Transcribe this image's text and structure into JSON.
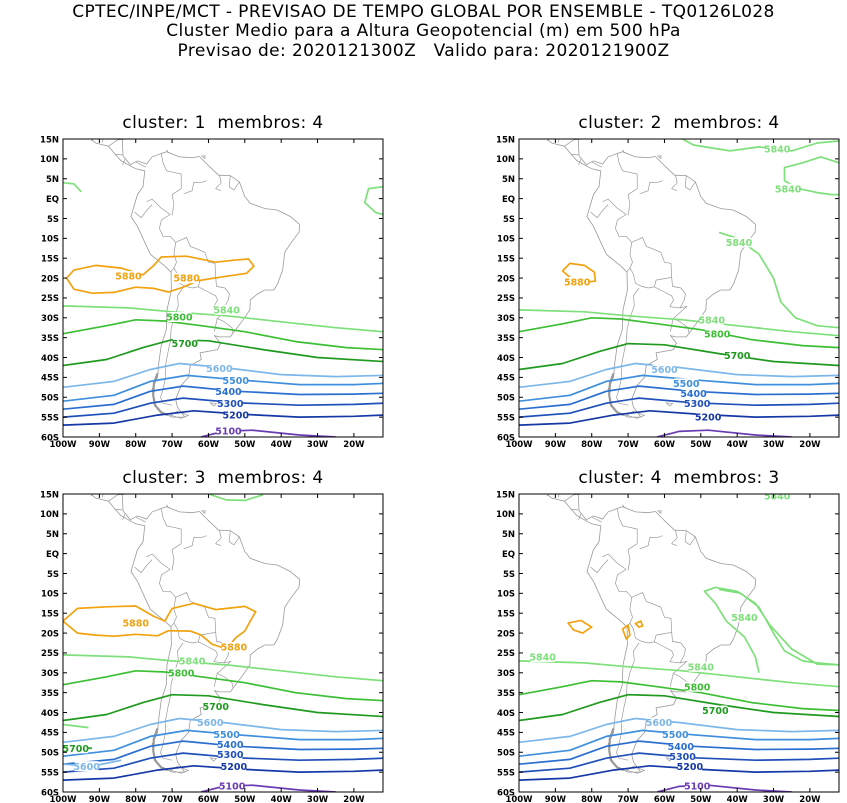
{
  "header": {
    "line1": "CPTEC/INPE/MCT - PREVISAO DE TEMPO GLOBAL POR ENSEMBLE - TQ0126L028",
    "line2": "Cluster Medio para a Altura Geopotencial (m) em 500 hPa",
    "line3": "Previsao de: 2020121300Z   Valido para: 2020121900Z"
  },
  "map_axes": {
    "lat_ticks": [
      "15N",
      "10N",
      "5N",
      "EQ",
      "5S",
      "10S",
      "15S",
      "20S",
      "25S",
      "30S",
      "35S",
      "40S",
      "45S",
      "50S",
      "55S",
      "60S"
    ],
    "lon_ticks": [
      "100W",
      "90W",
      "80W",
      "70W",
      "60W",
      "50W",
      "40W",
      "30W",
      "20W"
    ]
  },
  "colors": {
    "c5880": "#f2a20f",
    "c5840": "#7ee07a",
    "c5800": "#3cbf34",
    "c5700": "#1f9a1f",
    "c5600": "#7db7ea",
    "c5500": "#3f8fdc",
    "c5400": "#2a6fd0",
    "c5300": "#1f4fb8",
    "c5200": "#1538a6",
    "c5100": "#6a3cb3",
    "land": "#9a9a9a"
  },
  "panels": [
    {
      "title": "cluster: 1  membros: 4",
      "labels": [
        {
          "text": "5880",
          "lon": -82,
          "lat": -19.5,
          "c": "c5880"
        },
        {
          "text": "5880",
          "lon": -66,
          "lat": -20,
          "c": "c5880"
        },
        {
          "text": "5840",
          "lon": -55,
          "lat": -28,
          "c": "c5840"
        },
        {
          "text": "5800",
          "lon": -68,
          "lat": -29.8,
          "c": "c5800"
        },
        {
          "text": "5700",
          "lon": -66.5,
          "lat": -36.5,
          "c": "c5700"
        },
        {
          "text": "5600",
          "lon": -57,
          "lat": -42.7,
          "c": "c5600"
        },
        {
          "text": "5500",
          "lon": -52.5,
          "lat": -45.7,
          "c": "c5500"
        },
        {
          "text": "5400",
          "lon": -54.5,
          "lat": -48.5,
          "c": "c5400"
        },
        {
          "text": "5300",
          "lon": -54,
          "lat": -51.5,
          "c": "c5300"
        },
        {
          "text": "5200",
          "lon": -52.5,
          "lat": -54.5,
          "c": "c5200"
        },
        {
          "text": "5100",
          "lon": -54.5,
          "lat": -58.5,
          "c": "c5100"
        }
      ]
    },
    {
      "title": "cluster: 2  membros: 4",
      "labels": [
        {
          "text": "5840",
          "lon": -29,
          "lat": 12.5,
          "c": "c5840"
        },
        {
          "text": "5840",
          "lon": -26,
          "lat": 2.5,
          "c": "c5840"
        },
        {
          "text": "5840",
          "lon": -39.5,
          "lat": -11,
          "c": "c5840"
        },
        {
          "text": "5880",
          "lon": -84,
          "lat": -21,
          "c": "c5880"
        },
        {
          "text": "5840",
          "lon": -47,
          "lat": -30.5,
          "c": "c5840"
        },
        {
          "text": "5800",
          "lon": -45.5,
          "lat": -34,
          "c": "c5800"
        },
        {
          "text": "5700",
          "lon": -40,
          "lat": -39.5,
          "c": "c5700"
        },
        {
          "text": "5600",
          "lon": -60,
          "lat": -43,
          "c": "c5600"
        },
        {
          "text": "5500",
          "lon": -54,
          "lat": -46.5,
          "c": "c5500"
        },
        {
          "text": "5400",
          "lon": -52,
          "lat": -49,
          "c": "c5400"
        },
        {
          "text": "5300",
          "lon": -51,
          "lat": -51.5,
          "c": "c5300"
        },
        {
          "text": "5200",
          "lon": -48,
          "lat": -55,
          "c": "c5200"
        }
      ]
    },
    {
      "title": "cluster: 3  membros: 4",
      "labels": [
        {
          "text": "5880",
          "lon": -80,
          "lat": -17.5,
          "c": "c5880"
        },
        {
          "text": "5880",
          "lon": -53,
          "lat": -23.5,
          "c": "c5880"
        },
        {
          "text": "5840",
          "lon": -64.5,
          "lat": -27,
          "c": "c5840"
        },
        {
          "text": "5800",
          "lon": -67.5,
          "lat": -30,
          "c": "c5800"
        },
        {
          "text": "5700",
          "lon": -58,
          "lat": -38.5,
          "c": "c5700"
        },
        {
          "text": "5700",
          "lon": -96.5,
          "lat": -49,
          "c": "c5700"
        },
        {
          "text": "5600",
          "lon": -59.5,
          "lat": -42.5,
          "c": "c5600"
        },
        {
          "text": "5600",
          "lon": -93.5,
          "lat": -53.5,
          "c": "c5600"
        },
        {
          "text": "5500",
          "lon": -55,
          "lat": -45.5,
          "c": "c5500"
        },
        {
          "text": "5400",
          "lon": -54,
          "lat": -48,
          "c": "c5400"
        },
        {
          "text": "5300",
          "lon": -54,
          "lat": -50.5,
          "c": "c5300"
        },
        {
          "text": "5200",
          "lon": -53,
          "lat": -53.5,
          "c": "c5200"
        },
        {
          "text": "5100",
          "lon": -53.5,
          "lat": -58.5,
          "c": "c5100"
        }
      ]
    },
    {
      "title": "cluster: 4  membros: 3",
      "labels": [
        {
          "text": "5840",
          "lon": -29,
          "lat": 14.5,
          "c": "c5840"
        },
        {
          "text": "5840",
          "lon": -38,
          "lat": -16,
          "c": "c5840"
        },
        {
          "text": "5840",
          "lon": -93.5,
          "lat": -26,
          "c": "c5840"
        },
        {
          "text": "5840",
          "lon": -50,
          "lat": -28.5,
          "c": "c5840"
        },
        {
          "text": "5800",
          "lon": -51,
          "lat": -33.5,
          "c": "c5800"
        },
        {
          "text": "5700",
          "lon": -46,
          "lat": -39.5,
          "c": "c5700"
        },
        {
          "text": "5600",
          "lon": -61.5,
          "lat": -42.5,
          "c": "c5600"
        },
        {
          "text": "5500",
          "lon": -57,
          "lat": -45.5,
          "c": "c5500"
        },
        {
          "text": "5400",
          "lon": -55.5,
          "lat": -48.5,
          "c": "c5400"
        },
        {
          "text": "5300",
          "lon": -55,
          "lat": -51,
          "c": "c5300"
        },
        {
          "text": "5200",
          "lon": -53,
          "lat": -53.5,
          "c": "c5200"
        },
        {
          "text": "5100",
          "lon": -51,
          "lat": -58.5,
          "c": "c5100"
        }
      ]
    }
  ]
}
